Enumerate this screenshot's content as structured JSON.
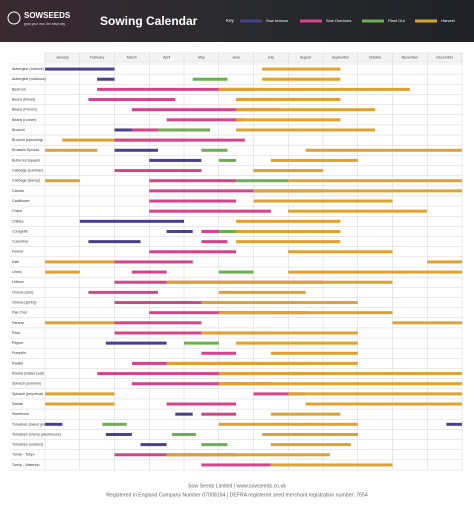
{
  "chart_data": {
    "type": "gantt",
    "brand": "SOWSEEDS",
    "tagline": "grow your own, the easy way",
    "title": "Sowing Calendar",
    "key_title": "Key",
    "series": [
      {
        "name": "Sow Indoors",
        "color": "#4a3f8f"
      },
      {
        "name": "Sow Outdoors",
        "color": "#d6438b"
      },
      {
        "name": "Plant Out",
        "color": "#6ab04c"
      },
      {
        "name": "Harvest",
        "color": "#e0a12e"
      }
    ],
    "categories": [
      "January",
      "February",
      "March",
      "April",
      "May",
      "June",
      "July",
      "August",
      "September",
      "October",
      "November",
      "December"
    ],
    "xlim": [
      0,
      12
    ],
    "rows": [
      {
        "name": "Aubergine (Indoors)",
        "bars": [
          [
            0,
            0,
            2
          ],
          [
            3,
            6.25,
            8.5
          ]
        ]
      },
      {
        "name": "Aubergine (outdoors)",
        "bars": [
          [
            0,
            1.5,
            2
          ],
          [
            2,
            4.25,
            5.25
          ],
          [
            3,
            6.25,
            8.5
          ]
        ]
      },
      {
        "name": "Beetroot",
        "bars": [
          [
            1,
            1.5,
            6
          ],
          [
            3,
            5,
            10.5
          ]
        ]
      },
      {
        "name": "Beans (Broad)",
        "bars": [
          [
            1,
            1.25,
            3.75
          ],
          [
            3,
            5.5,
            8.5
          ]
        ]
      },
      {
        "name": "Beans (French)",
        "bars": [
          [
            1,
            2.5,
            6.75
          ],
          [
            3,
            5.5,
            9.5
          ]
        ]
      },
      {
        "name": "Beans (runner)",
        "bars": [
          [
            1,
            3.5,
            5.75
          ],
          [
            3,
            5.5,
            8.5
          ]
        ]
      },
      {
        "name": "Broccoli",
        "bars": [
          [
            0,
            2,
            3.25
          ],
          [
            1,
            2.5,
            4.75
          ],
          [
            2,
            3.25,
            4.75
          ],
          [
            3,
            5.5,
            9.5
          ]
        ]
      },
      {
        "name": "Broccoli (sprouting)",
        "bars": [
          [
            3,
            0.5,
            4
          ],
          [
            1,
            2,
            5.75
          ]
        ]
      },
      {
        "name": "Brussels Sprouts",
        "bars": [
          [
            3,
            0,
            1.5
          ],
          [
            0,
            2,
            3.25
          ],
          [
            2,
            4.5,
            5.25
          ],
          [
            3,
            7.5,
            12
          ]
        ]
      },
      {
        "name": "Butternut Squash",
        "bars": [
          [
            0,
            3,
            4.5
          ],
          [
            2,
            5,
            5.5
          ],
          [
            3,
            6.5,
            9
          ]
        ]
      },
      {
        "name": "Cabbage (summer)",
        "bars": [
          [
            1,
            2,
            4.5
          ],
          [
            3,
            6,
            8
          ]
        ]
      },
      {
        "name": "Cabbage (Savoy)",
        "bars": [
          [
            3,
            0,
            1
          ],
          [
            1,
            3,
            5.5
          ],
          [
            2,
            5.5,
            7
          ],
          [
            3,
            7,
            12
          ]
        ]
      },
      {
        "name": "Carrots",
        "bars": [
          [
            1,
            3,
            8
          ],
          [
            3,
            6,
            12
          ]
        ]
      },
      {
        "name": "Cauliflower",
        "bars": [
          [
            1,
            3,
            5.5
          ],
          [
            3,
            6,
            10
          ]
        ]
      },
      {
        "name": "Chard",
        "bars": [
          [
            1,
            3,
            6.5
          ],
          [
            3,
            7,
            11
          ]
        ]
      },
      {
        "name": "Chillies",
        "bars": [
          [
            0,
            1,
            4
          ],
          [
            3,
            5.5,
            8.5
          ]
        ]
      },
      {
        "name": "Courgette",
        "bars": [
          [
            0,
            3.5,
            4.25
          ],
          [
            3,
            5,
            8.5
          ],
          [
            1,
            4.5,
            5.25
          ],
          [
            2,
            5,
            5.5
          ]
        ]
      },
      {
        "name": "Cucumber",
        "bars": [
          [
            0,
            1.25,
            2.75
          ],
          [
            1,
            4.5,
            5.25
          ],
          [
            3,
            5.5,
            8.5
          ]
        ]
      },
      {
        "name": "Fennel",
        "bars": [
          [
            1,
            3,
            5.5
          ],
          [
            3,
            7,
            10
          ]
        ]
      },
      {
        "name": "Kale",
        "bars": [
          [
            3,
            0,
            2
          ],
          [
            1,
            2,
            4.25
          ],
          [
            3,
            11,
            12
          ]
        ]
      },
      {
        "name": "Leeks",
        "bars": [
          [
            3,
            0,
            1
          ],
          [
            1,
            2.5,
            3.5
          ],
          [
            2,
            5,
            6
          ],
          [
            3,
            7,
            12
          ]
        ]
      },
      {
        "name": "Lettuce",
        "bars": [
          [
            1,
            2,
            8
          ],
          [
            3,
            3.5,
            10
          ]
        ]
      },
      {
        "name": "Onions (sets)",
        "bars": [
          [
            1,
            1.25,
            3.25
          ],
          [
            3,
            5,
            7.5
          ]
        ]
      },
      {
        "name": "Onions (spring)",
        "bars": [
          [
            1,
            2,
            6.5
          ],
          [
            3,
            4.5,
            9
          ]
        ]
      },
      {
        "name": "Pak Choi",
        "bars": [
          [
            1,
            3,
            7.5
          ],
          [
            3,
            5,
            10
          ]
        ]
      },
      {
        "name": "Parsnip",
        "bars": [
          [
            3,
            0,
            2
          ],
          [
            1,
            2,
            4.5
          ],
          [
            3,
            10,
            12
          ]
        ]
      },
      {
        "name": "Peas",
        "bars": [
          [
            1,
            2,
            6.5
          ],
          [
            3,
            4.5,
            9
          ]
        ]
      },
      {
        "name": "Pepper",
        "bars": [
          [
            0,
            1.75,
            3.5
          ],
          [
            2,
            4,
            5
          ],
          [
            3,
            5.5,
            9
          ]
        ]
      },
      {
        "name": "Pumpkin",
        "bars": [
          [
            1,
            4.5,
            5.5
          ],
          [
            3,
            6.5,
            9
          ]
        ]
      },
      {
        "name": "Radish",
        "bars": [
          [
            1,
            2.5,
            7.5
          ],
          [
            3,
            3.5,
            9
          ]
        ]
      },
      {
        "name": "Rocket (Salad Leaf)",
        "bars": [
          [
            1,
            1.5,
            8
          ],
          [
            3,
            5,
            12
          ]
        ]
      },
      {
        "name": "Spinach (summer)",
        "bars": [
          [
            1,
            2.5,
            6.5
          ],
          [
            3,
            5,
            12
          ]
        ]
      },
      {
        "name": "Spinach (perpetual)",
        "bars": [
          [
            3,
            0,
            2
          ],
          [
            1,
            6,
            7.5
          ],
          [
            3,
            7,
            12
          ]
        ]
      },
      {
        "name": "Swede",
        "bars": [
          [
            3,
            0,
            2
          ],
          [
            1,
            3.5,
            5.5
          ],
          [
            3,
            7.5,
            12
          ]
        ]
      },
      {
        "name": "Sweetcorn",
        "bars": [
          [
            0,
            3.75,
            4.25
          ],
          [
            1,
            4.5,
            5.5
          ],
          [
            3,
            6.5,
            8.5
          ]
        ]
      },
      {
        "name": "Tomatoes (sweet greenhouse)",
        "bars": [
          [
            0,
            0,
            0.5
          ],
          [
            2,
            1.65,
            2.35
          ],
          [
            3,
            5,
            9
          ],
          [
            0,
            11.55,
            12
          ]
        ]
      },
      {
        "name": "Tomatoes (cherry greenhouse)",
        "bars": [
          [
            0,
            1.75,
            2.5
          ],
          [
            2,
            3.65,
            4.35
          ],
          [
            3,
            6.25,
            9
          ]
        ]
      },
      {
        "name": "Tomatoes (outdoor)",
        "bars": [
          [
            0,
            2.75,
            3.5
          ],
          [
            2,
            4.5,
            5.25
          ],
          [
            3,
            6.5,
            8.8
          ]
        ]
      },
      {
        "name": "Turnip - Tokyo",
        "bars": [
          [
            1,
            2,
            5.5
          ],
          [
            3,
            3.5,
            8.2
          ]
        ]
      },
      {
        "name": "Turnip - Waterloo",
        "bars": [
          [
            1,
            4.5,
            6.5
          ],
          [
            3,
            6.5,
            10
          ]
        ]
      }
    ],
    "footer": [
      "Sow Seeds Limited | www.sowseeds.co.uk",
      "Registered in England Company Number 07008164 | DEFRA registered seed merchant registration number: 7654"
    ]
  }
}
